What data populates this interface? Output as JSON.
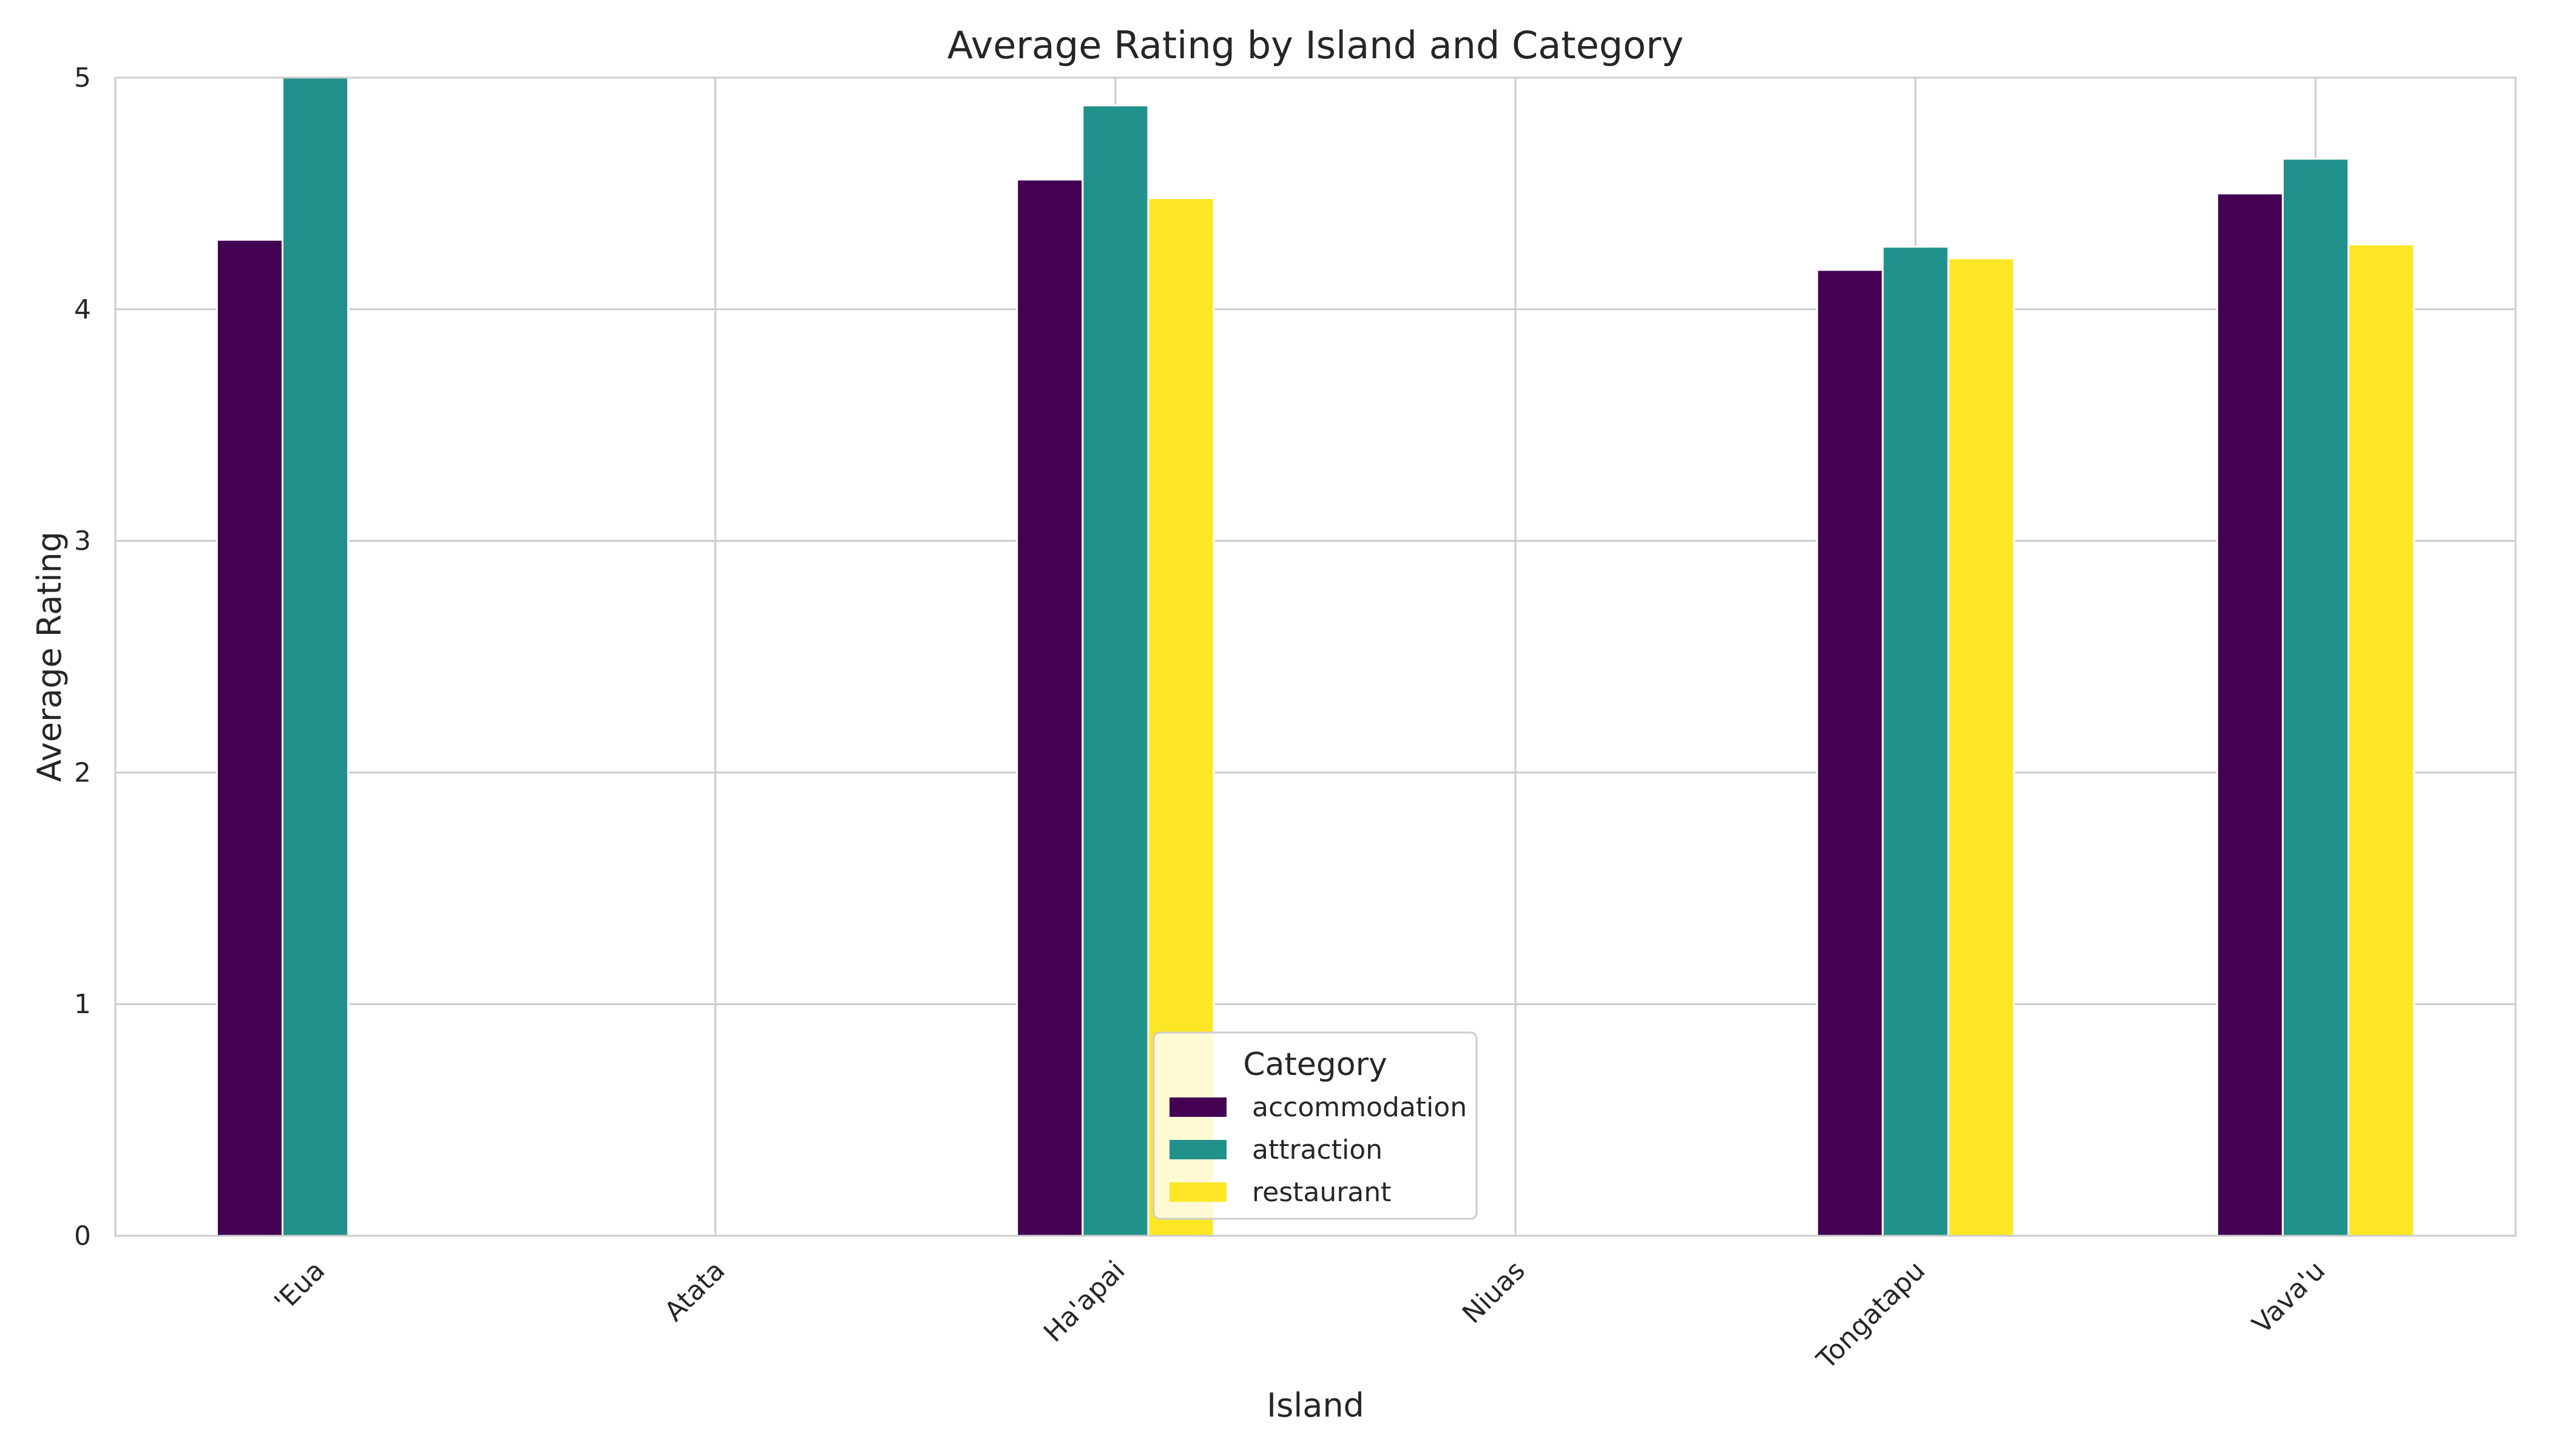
{
  "chart_data": {
    "type": "bar",
    "title": "Average Rating by Island and Category",
    "xlabel": "Island",
    "ylabel": "Average Rating",
    "ylim": [
      0,
      5
    ],
    "yticks": [
      0,
      1,
      2,
      3,
      4,
      5
    ],
    "grid": true,
    "legend": {
      "title": "Category",
      "placement": "lower-center"
    },
    "categories": [
      "'Eua",
      "Atata",
      "Ha'apai",
      "Niuas",
      "Tongatapu",
      "Vava'u"
    ],
    "series": [
      {
        "name": "accommodation",
        "color": "#440154",
        "values": [
          4.3,
          null,
          4.56,
          null,
          4.17,
          4.5
        ]
      },
      {
        "name": "attraction",
        "color": "#21918c",
        "values": [
          5.0,
          null,
          4.88,
          null,
          4.27,
          4.65
        ]
      },
      {
        "name": "restaurant",
        "color": "#fde725",
        "values": [
          null,
          null,
          4.48,
          null,
          4.22,
          4.28
        ]
      }
    ]
  }
}
